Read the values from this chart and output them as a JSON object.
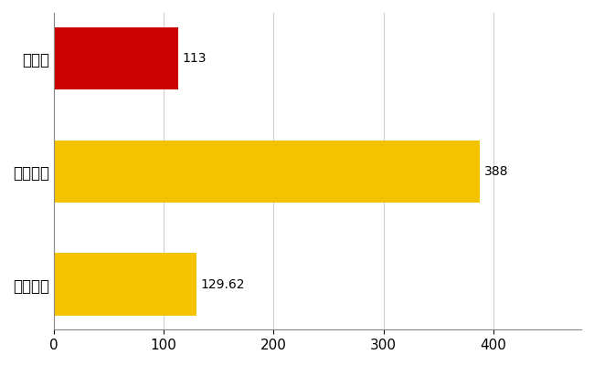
{
  "categories": [
    "全国平均",
    "全国最大",
    "岡山県"
  ],
  "values": [
    129.62,
    388,
    113
  ],
  "bar_colors": [
    "#F5C200",
    "#F5C200",
    "#CC0000"
  ],
  "value_labels": [
    "129.62",
    "388",
    "113"
  ],
  "xlim": [
    0,
    480
  ],
  "xticks": [
    0,
    100,
    200,
    300,
    400
  ],
  "bar_height": 0.55,
  "background_color": "#FFFFFF",
  "grid_color": "#CCCCCC",
  "label_fontsize": 12,
  "tick_fontsize": 11,
  "value_fontsize": 10
}
